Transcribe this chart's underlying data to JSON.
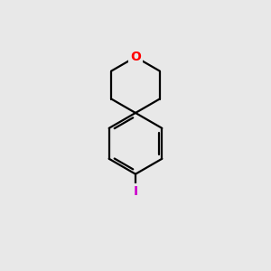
{
  "background_color": "#e8e8e8",
  "bond_color": "#000000",
  "oxygen_color": "#ff0000",
  "iodine_color": "#cc00cc",
  "oxygen_label": "O",
  "iodine_label": "I",
  "line_width": 1.6,
  "font_size_O": 10,
  "font_size_I": 10,
  "figsize": [
    3.0,
    3.0
  ],
  "dpi": 100,
  "xlim": [
    0,
    10
  ],
  "ylim": [
    0,
    10
  ]
}
